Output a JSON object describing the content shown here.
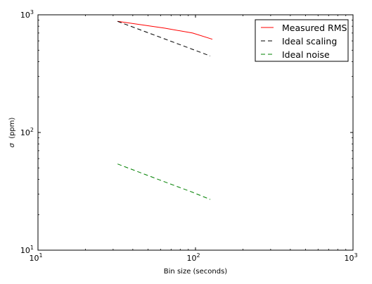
{
  "chart_data": {
    "type": "line",
    "title": "",
    "xlabel": "Bin size (seconds)",
    "ylabel_symbol": "σ",
    "ylabel_unit": "(ppm)",
    "x_scale": "log",
    "y_scale": "log",
    "xlim": [
      10,
      1000
    ],
    "ylim": [
      10,
      1000
    ],
    "x_major_ticks": [
      {
        "value": 10,
        "base": "10",
        "exp": "1"
      },
      {
        "value": 100,
        "base": "10",
        "exp": "2"
      },
      {
        "value": 1000,
        "base": "10",
        "exp": "3"
      }
    ],
    "y_major_ticks": [
      {
        "value": 10,
        "base": "10",
        "exp": "1"
      },
      {
        "value": 100,
        "base": "10",
        "exp": "2"
      },
      {
        "value": 1000,
        "base": "10",
        "exp": "3"
      }
    ],
    "grid": false,
    "legend_position": "top-right",
    "series": [
      {
        "name": "Measured RMS",
        "color": "#ff0000",
        "dash": "solid",
        "x": [
          32,
          64,
          96,
          128
        ],
        "y": [
          880,
          770,
          700,
          620
        ]
      },
      {
        "name": "Ideal scaling",
        "color": "#000000",
        "dash": "dashed",
        "x": [
          32,
          64,
          96,
          124
        ],
        "y": [
          880,
          622,
          508,
          447
        ]
      },
      {
        "name": "Ideal noise",
        "color": "#008000",
        "dash": "dashed",
        "x": [
          32,
          64,
          96,
          124
        ],
        "y": [
          54,
          38,
          31,
          27
        ]
      }
    ]
  }
}
